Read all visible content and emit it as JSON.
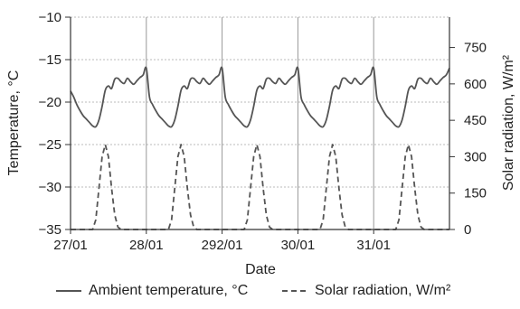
{
  "chart_data": {
    "type": "line",
    "xlabel": "Date",
    "ylabel_left": "Temperature, °C",
    "ylabel_right": "Solar radiation, W/m²",
    "ylim_left": [
      -35,
      -10
    ],
    "ylim_right": [
      0,
      875
    ],
    "yticks_left": [
      "−10",
      "−15",
      "−20",
      "−25",
      "−30",
      "−35"
    ],
    "yticks_right": [
      "750",
      "600",
      "450",
      "300",
      "150",
      "0"
    ],
    "xticks": [
      "27/01",
      "28/01",
      "292/01",
      "30/01",
      "31/01"
    ],
    "xlim_days": [
      27,
      32
    ],
    "grid": "horizontal dotted, vertical solid at midnight",
    "series": [
      {
        "name": "Ambient temperature, °C",
        "axis": "left",
        "style": "solid",
        "color": "#555555",
        "daily_profile": {
          "hours": [
            0,
            1,
            2,
            3,
            4,
            5,
            6,
            7,
            8,
            9,
            10,
            11,
            12,
            13,
            14,
            15,
            16,
            17,
            18,
            19,
            20,
            21,
            22,
            23,
            24
          ],
          "values": [
            -18.7,
            -19.4,
            -20.3,
            -21.0,
            -21.6,
            -22.0,
            -22.4,
            -22.8,
            -22.9,
            -22.1,
            -20.5,
            -18.6,
            -18.1,
            -18.4,
            -17.3,
            -17.2,
            -17.6,
            -17.8,
            -17.2,
            -17.6,
            -17.9,
            -17.5,
            -17.1,
            -16.8,
            -16.0
          ]
        },
        "days": 5
      },
      {
        "name": "Solar radiation, W/m²",
        "axis": "right",
        "style": "dashed",
        "color": "#555555",
        "daily_profile": {
          "hours": [
            0,
            7,
            8,
            9,
            10,
            11,
            12,
            13,
            14,
            15,
            16,
            17,
            24
          ],
          "values": [
            0,
            0,
            40,
            170,
            300,
            350,
            300,
            170,
            60,
            10,
            0,
            0,
            0
          ]
        },
        "days": 5
      }
    ],
    "legend": "bottom"
  }
}
